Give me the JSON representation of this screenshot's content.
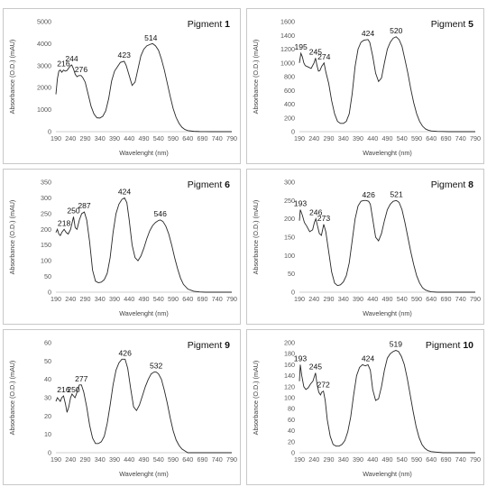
{
  "figure": {
    "x_axis_label": "Wavelenght (nm)",
    "y_axis_label": "Absorbance (O.D.) (mAU)"
  },
  "chart_data": [
    {
      "type": "line",
      "panel_label": "Pigment",
      "panel_number": "1",
      "xlim": [
        190,
        790
      ],
      "x_ticks": [
        "190",
        "240",
        "290",
        "340",
        "390",
        "440",
        "490",
        "540",
        "590",
        "640",
        "690",
        "740",
        "790"
      ],
      "ylim": [
        0,
        5000
      ],
      "y_ticks": [
        "0",
        "1000",
        "2000",
        "3000",
        "4000",
        "5000"
      ],
      "peak_labels": [
        {
          "x": 216,
          "label": "216"
        },
        {
          "x": 244,
          "label": "244"
        },
        {
          "x": 276,
          "label": "276"
        },
        {
          "x": 423,
          "label": "423"
        },
        {
          "x": 514,
          "label": "514"
        }
      ],
      "series": [
        {
          "x": [
            190,
            195,
            200,
            205,
            210,
            216,
            222,
            228,
            234,
            240,
            244,
            250,
            256,
            262,
            268,
            276,
            282,
            290,
            300,
            310,
            320,
            330,
            340,
            350,
            360,
            370,
            380,
            390,
            400,
            410,
            423,
            430,
            440,
            450,
            460,
            470,
            480,
            490,
            500,
            514,
            520,
            530,
            540,
            550,
            560,
            570,
            580,
            590,
            600,
            610,
            620,
            630,
            640,
            660,
            680,
            700,
            720,
            740,
            760,
            790
          ],
          "y": [
            1700,
            2400,
            2750,
            2800,
            2700,
            2800,
            2750,
            2780,
            2900,
            3000,
            3030,
            2850,
            2600,
            2500,
            2550,
            2550,
            2450,
            2250,
            1700,
            1150,
            800,
            630,
            620,
            700,
            950,
            1500,
            2300,
            2750,
            2950,
            3150,
            3200,
            3000,
            2550,
            2100,
            2250,
            2850,
            3450,
            3750,
            3900,
            3980,
            4000,
            3900,
            3700,
            3300,
            2800,
            2200,
            1600,
            1050,
            650,
            380,
            200,
            100,
            50,
            15,
            5,
            2,
            0,
            0,
            0,
            0
          ]
        }
      ]
    },
    {
      "type": "line",
      "panel_label": "Pigment",
      "panel_number": "5",
      "xlim": [
        190,
        790
      ],
      "x_ticks": [
        "190",
        "240",
        "290",
        "340",
        "390",
        "440",
        "490",
        "540",
        "590",
        "640",
        "690",
        "740",
        "790"
      ],
      "ylim": [
        0,
        1600
      ],
      "y_ticks": [
        "0",
        "200",
        "400",
        "600",
        "800",
        "1000",
        "1200",
        "1400",
        "1600"
      ],
      "peak_labels": [
        {
          "x": 195,
          "label": "195"
        },
        {
          "x": 245,
          "label": "245"
        },
        {
          "x": 274,
          "label": "274"
        },
        {
          "x": 424,
          "label": "424"
        },
        {
          "x": 520,
          "label": "520"
        }
      ],
      "series": [
        {
          "x": [
            190,
            195,
            200,
            205,
            210,
            220,
            230,
            240,
            245,
            250,
            255,
            260,
            266,
            274,
            280,
            290,
            300,
            310,
            320,
            330,
            340,
            350,
            360,
            370,
            380,
            390,
            400,
            410,
            424,
            430,
            440,
            450,
            460,
            470,
            480,
            490,
            500,
            510,
            520,
            530,
            540,
            550,
            560,
            570,
            580,
            590,
            600,
            610,
            620,
            630,
            640,
            660,
            680,
            700,
            720,
            740,
            760,
            790
          ],
          "y": [
            1000,
            1140,
            1090,
            1000,
            960,
            940,
            920,
            1000,
            1070,
            960,
            880,
            890,
            950,
            1000,
            870,
            700,
            450,
            260,
            150,
            120,
            120,
            150,
            260,
            550,
            950,
            1200,
            1300,
            1330,
            1340,
            1300,
            1100,
            850,
            730,
            780,
            1000,
            1200,
            1300,
            1360,
            1380,
            1340,
            1240,
            1050,
            850,
            620,
            420,
            260,
            150,
            80,
            40,
            20,
            10,
            4,
            2,
            0,
            0,
            0,
            0,
            0
          ]
        }
      ]
    },
    {
      "type": "line",
      "panel_label": "Pigment",
      "panel_number": "6",
      "xlim": [
        190,
        790
      ],
      "x_ticks": [
        "190",
        "240",
        "290",
        "340",
        "390",
        "440",
        "490",
        "540",
        "590",
        "640",
        "690",
        "740",
        "790"
      ],
      "ylim": [
        0,
        350
      ],
      "y_ticks": [
        "0",
        "50",
        "100",
        "150",
        "200",
        "250",
        "300",
        "350"
      ],
      "peak_labels": [
        {
          "x": 218,
          "label": "218"
        },
        {
          "x": 250,
          "label": "250"
        },
        {
          "x": 287,
          "label": "287"
        },
        {
          "x": 424,
          "label": "424"
        },
        {
          "x": 546,
          "label": "546"
        }
      ],
      "series": [
        {
          "x": [
            190,
            195,
            200,
            205,
            210,
            218,
            225,
            232,
            240,
            250,
            256,
            262,
            270,
            278,
            287,
            295,
            305,
            315,
            325,
            335,
            345,
            355,
            365,
            375,
            385,
            395,
            405,
            415,
            424,
            432,
            440,
            450,
            460,
            470,
            480,
            490,
            500,
            510,
            520,
            530,
            540,
            546,
            555,
            565,
            575,
            585,
            595,
            605,
            615,
            625,
            640,
            660,
            680,
            700,
            720,
            740,
            760,
            790
          ],
          "y": [
            190,
            200,
            185,
            180,
            190,
            200,
            190,
            185,
            200,
            240,
            205,
            200,
            230,
            250,
            255,
            230,
            160,
            70,
            35,
            30,
            32,
            40,
            60,
            110,
            190,
            250,
            280,
            295,
            300,
            285,
            230,
            150,
            110,
            100,
            115,
            140,
            170,
            195,
            212,
            222,
            228,
            230,
            225,
            210,
            185,
            150,
            110,
            75,
            45,
            25,
            10,
            3,
            1,
            0,
            0,
            0,
            0,
            0
          ]
        }
      ]
    },
    {
      "type": "line",
      "panel_label": "Pigment",
      "panel_number": "8",
      "xlim": [
        190,
        790
      ],
      "x_ticks": [
        "190",
        "240",
        "290",
        "340",
        "390",
        "440",
        "490",
        "540",
        "590",
        "640",
        "690",
        "740",
        "790"
      ],
      "ylim": [
        0,
        300
      ],
      "y_ticks": [
        "0",
        "50",
        "100",
        "150",
        "200",
        "250",
        "300"
      ],
      "peak_labels": [
        {
          "x": 193,
          "label": "193"
        },
        {
          "x": 246,
          "label": "246"
        },
        {
          "x": 273,
          "label": "273"
        },
        {
          "x": 426,
          "label": "426"
        },
        {
          "x": 521,
          "label": "521"
        }
      ],
      "series": [
        {
          "x": [
            190,
            193,
            200,
            207,
            215,
            225,
            235,
            241,
            246,
            252,
            258,
            265,
            273,
            280,
            290,
            300,
            310,
            320,
            330,
            340,
            350,
            360,
            370,
            380,
            390,
            400,
            410,
            418,
            426,
            432,
            440,
            450,
            460,
            470,
            480,
            490,
            500,
            510,
            521,
            530,
            540,
            550,
            560,
            570,
            580,
            590,
            600,
            610,
            620,
            630,
            640,
            660,
            680,
            700,
            720,
            740,
            760,
            790
          ],
          "y": [
            195,
            225,
            210,
            190,
            180,
            165,
            170,
            190,
            200,
            180,
            160,
            155,
            185,
            165,
            110,
            55,
            25,
            18,
            20,
            28,
            45,
            80,
            140,
            200,
            235,
            248,
            250,
            250,
            248,
            240,
            200,
            150,
            140,
            160,
            195,
            225,
            240,
            248,
            250,
            245,
            225,
            190,
            150,
            110,
            75,
            45,
            25,
            12,
            6,
            3,
            1,
            0,
            0,
            0,
            0,
            0,
            0,
            0
          ]
        }
      ]
    },
    {
      "type": "line",
      "panel_label": "Pigment",
      "panel_number": "9",
      "xlim": [
        190,
        790
      ],
      "x_ticks": [
        "190",
        "240",
        "290",
        "340",
        "390",
        "440",
        "490",
        "540",
        "590",
        "640",
        "690",
        "740",
        "790"
      ],
      "ylim": [
        0,
        60
      ],
      "y_ticks": [
        "0",
        "10",
        "20",
        "30",
        "40",
        "50",
        "60"
      ],
      "peak_labels": [
        {
          "x": 216,
          "label": "216"
        },
        {
          "x": 250,
          "label": "250"
        },
        {
          "x": 277,
          "label": "277"
        },
        {
          "x": 426,
          "label": "426"
        },
        {
          "x": 532,
          "label": "532"
        }
      ],
      "series": [
        {
          "x": [
            190,
            195,
            200,
            205,
            210,
            216,
            222,
            228,
            234,
            240,
            245,
            250,
            255,
            260,
            265,
            270,
            277,
            285,
            295,
            305,
            315,
            325,
            335,
            345,
            355,
            365,
            375,
            385,
            395,
            405,
            415,
            426,
            435,
            445,
            455,
            465,
            475,
            485,
            495,
            505,
            515,
            525,
            532,
            540,
            550,
            560,
            570,
            580,
            590,
            600,
            610,
            620,
            630,
            640,
            660,
            690,
            720,
            760,
            790
          ],
          "y": [
            28,
            30,
            29,
            28,
            30,
            31,
            27,
            22,
            25,
            30,
            32,
            31,
            30,
            32,
            35,
            37,
            37,
            33,
            25,
            15,
            8,
            5,
            5,
            6,
            9,
            16,
            26,
            37,
            45,
            49,
            51,
            51,
            46,
            35,
            25,
            23,
            26,
            31,
            36,
            40,
            43,
            44,
            44,
            43,
            40,
            34,
            27,
            19,
            12,
            7,
            4,
            2,
            1,
            0,
            0,
            0,
            0,
            0,
            0
          ]
        }
      ]
    },
    {
      "type": "line",
      "panel_label": "Pigment",
      "panel_number": "10",
      "xlim": [
        190,
        790
      ],
      "x_ticks": [
        "190",
        "240",
        "290",
        "340",
        "390",
        "440",
        "490",
        "540",
        "590",
        "640",
        "690",
        "740",
        "790"
      ],
      "ylim": [
        0,
        200
      ],
      "y_ticks": [
        "0",
        "20",
        "40",
        "60",
        "80",
        "100",
        "120",
        "140",
        "160",
        "180",
        "200"
      ],
      "peak_labels": [
        {
          "x": 193,
          "label": "193"
        },
        {
          "x": 245,
          "label": "245"
        },
        {
          "x": 272,
          "label": "272"
        },
        {
          "x": 424,
          "label": "424"
        },
        {
          "x": 519,
          "label": "519"
        }
      ],
      "series": [
        {
          "x": [
            190,
            193,
            198,
            205,
            212,
            220,
            228,
            236,
            245,
            250,
            256,
            262,
            266,
            272,
            278,
            285,
            295,
            305,
            315,
            325,
            335,
            345,
            355,
            365,
            375,
            385,
            395,
            405,
            415,
            424,
            432,
            440,
            450,
            460,
            470,
            480,
            490,
            500,
            510,
            519,
            528,
            538,
            548,
            558,
            568,
            578,
            588,
            598,
            608,
            618,
            628,
            640,
            660,
            680,
            700,
            720,
            740,
            760,
            790
          ],
          "y": [
            130,
            160,
            140,
            120,
            115,
            118,
            125,
            130,
            145,
            125,
            110,
            105,
            110,
            112,
            95,
            60,
            30,
            15,
            12,
            12,
            15,
            22,
            38,
            65,
            105,
            140,
            155,
            160,
            158,
            160,
            150,
            115,
            95,
            98,
            120,
            150,
            172,
            180,
            184,
            186,
            184,
            175,
            160,
            135,
            105,
            75,
            48,
            28,
            15,
            8,
            4,
            2,
            1,
            0,
            0,
            0,
            0,
            0,
            0
          ]
        }
      ]
    }
  ]
}
